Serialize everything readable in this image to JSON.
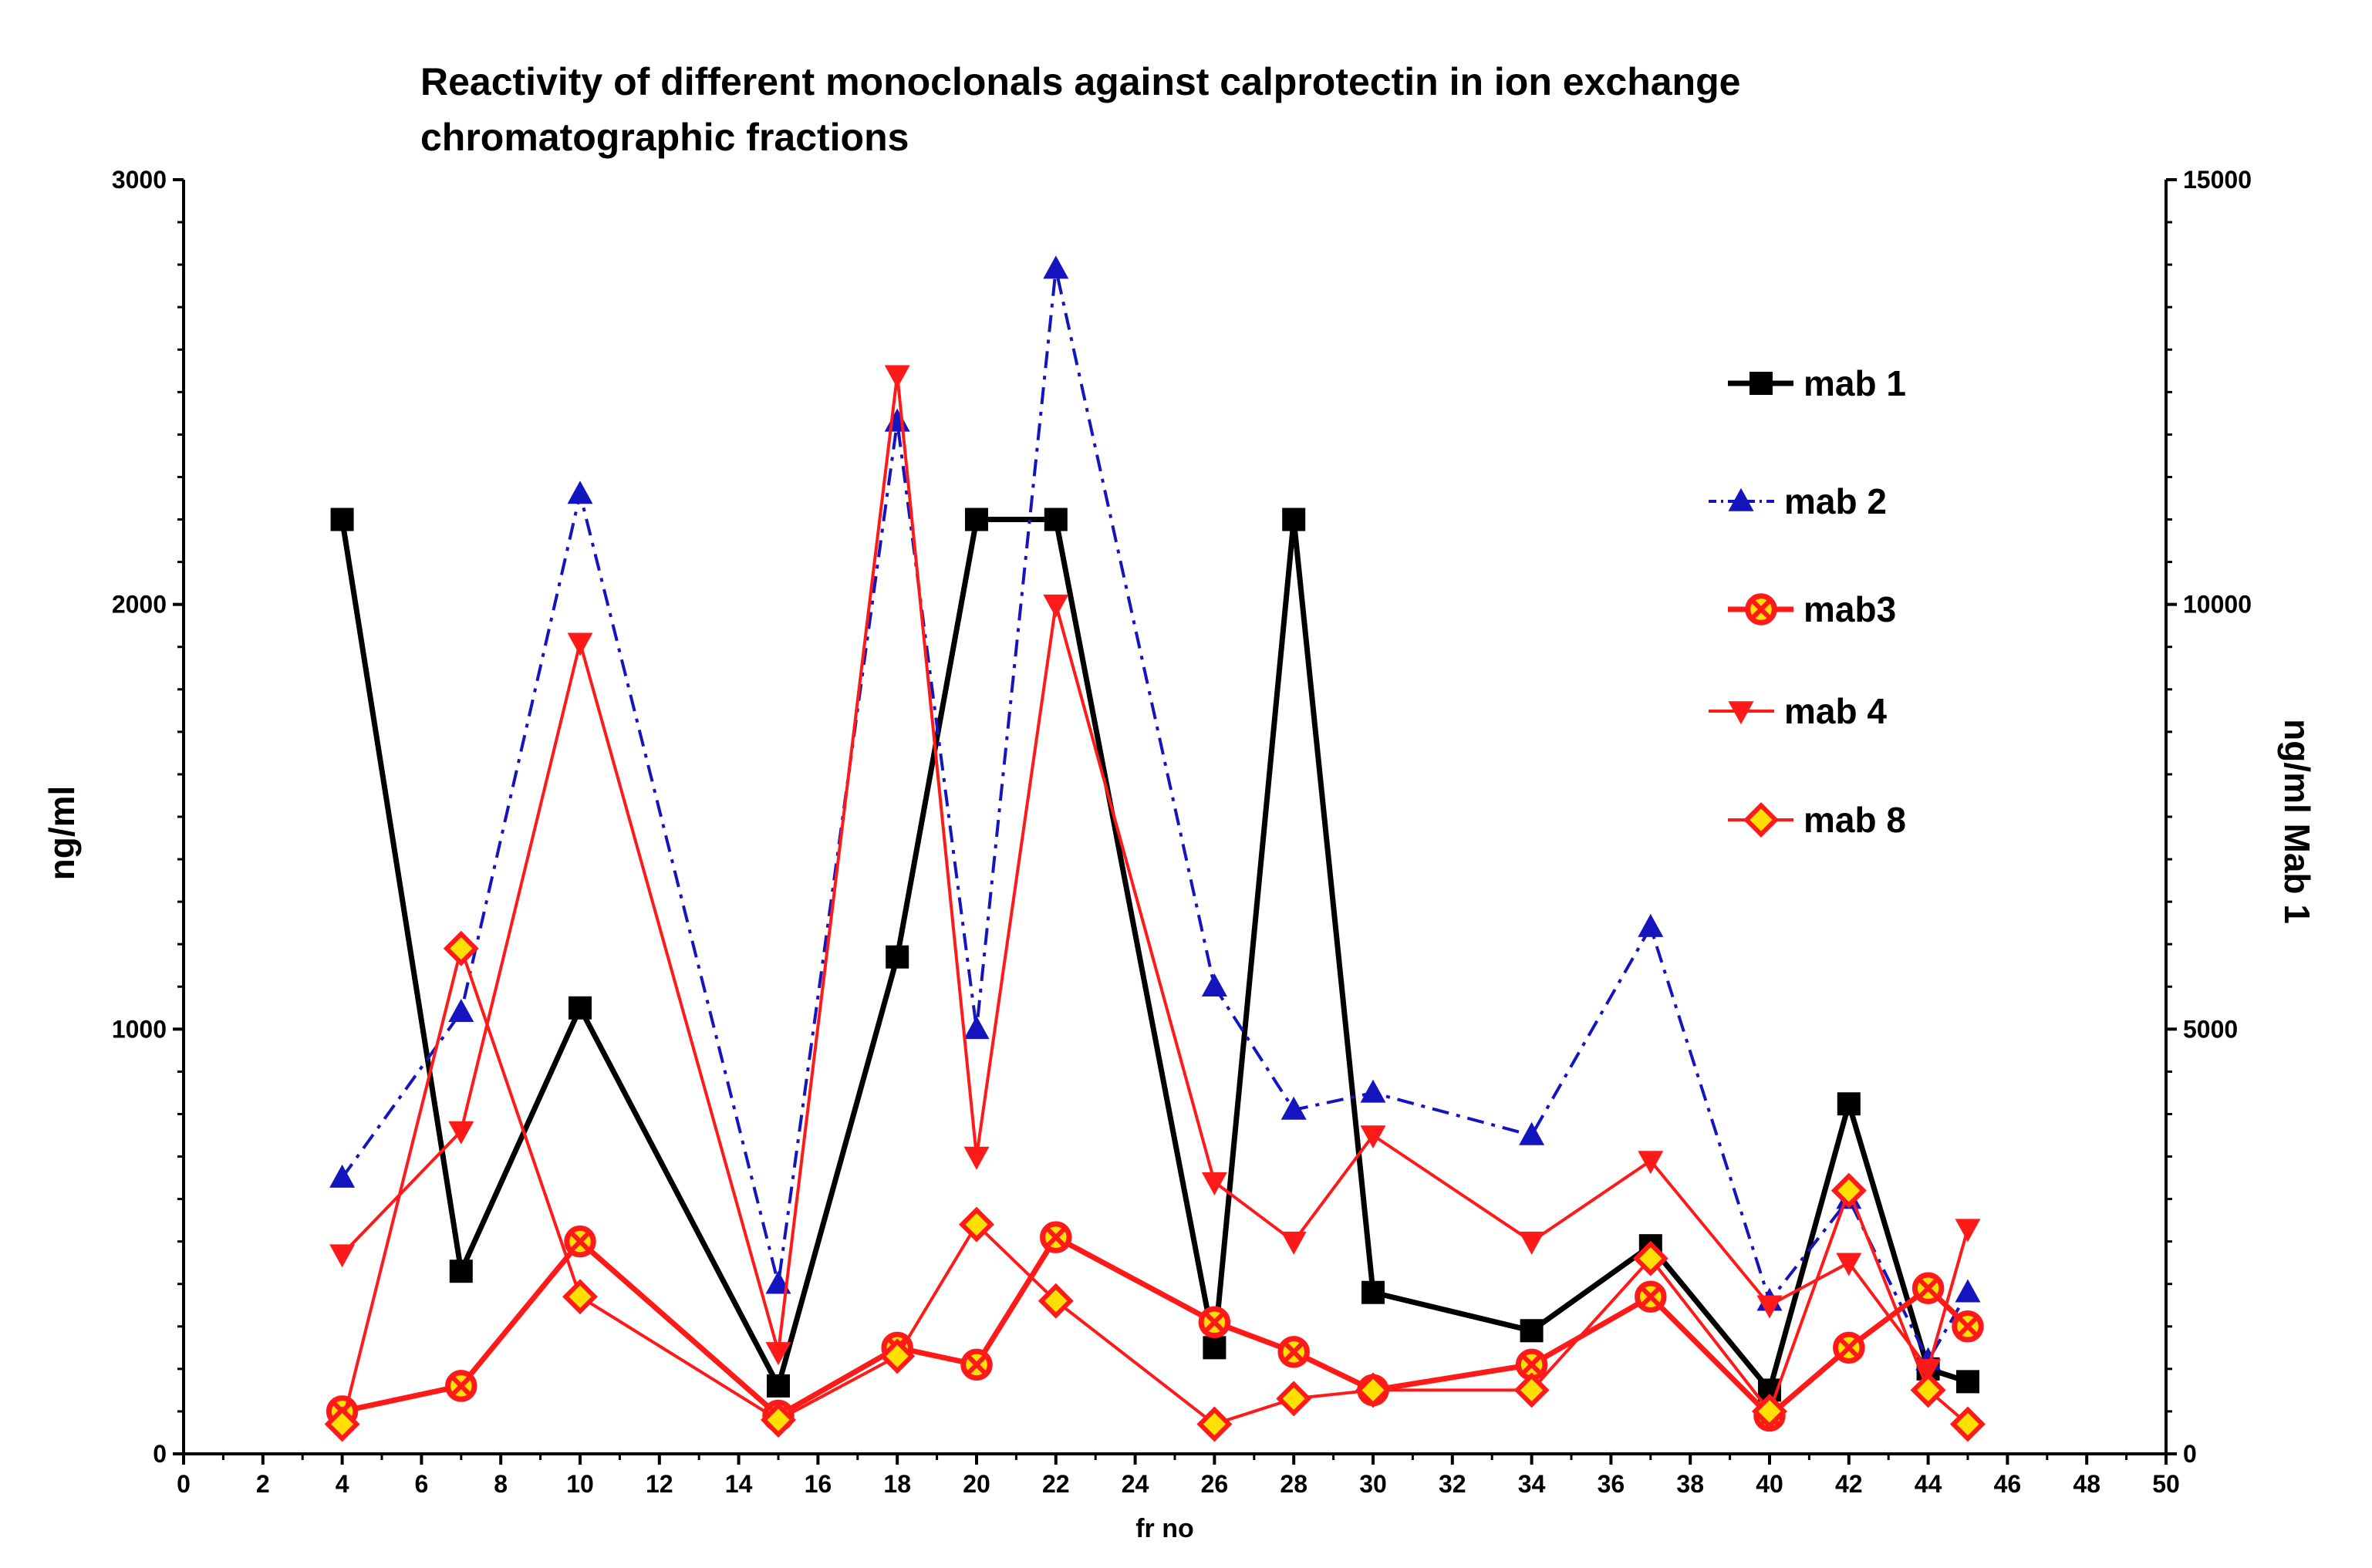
{
  "chart_data": {
    "type": "line",
    "title_lines": [
      "Reactivity of different monoclonals against calprotectin in ion exchange",
      "chromatographic fractions"
    ],
    "xlabel": "fr no",
    "ylabel": "ng/ml",
    "y2label": "ng/ml  Mab 1",
    "xlim": [
      0,
      50
    ],
    "ylim": [
      0,
      3000
    ],
    "y2lim": [
      0,
      15000
    ],
    "x_ticks": [
      "0",
      "2",
      "4",
      "6",
      "8",
      "10",
      "12",
      "14",
      "16",
      "18",
      "20",
      "22",
      "24",
      "26",
      "28",
      "30",
      "32",
      "34",
      "36",
      "38",
      "40",
      "42",
      "44",
      "46",
      "48",
      "50"
    ],
    "y_ticks": [
      "0",
      "1000",
      "2000",
      "3000"
    ],
    "y2_ticks": [
      "0",
      "5000",
      "10000",
      "15000"
    ],
    "legend_position": "right",
    "series": [
      {
        "name": "mab 1",
        "axis": "right",
        "color": "#000000",
        "marker": "square",
        "line": "solid",
        "x": [
          4,
          7,
          10,
          15,
          18,
          20,
          22,
          26,
          28,
          30,
          34,
          37,
          40,
          42,
          44,
          45
        ],
        "values": [
          11000,
          2150,
          5250,
          800,
          5850,
          11000,
          11000,
          1250,
          11000,
          1900,
          1450,
          2450,
          750,
          4120,
          1000,
          850
        ]
      },
      {
        "name": "mab 2",
        "axis": "left",
        "color": "#1515c0",
        "marker": "triangle-up",
        "line": "dashdot",
        "x": [
          4,
          7,
          10,
          15,
          18,
          20,
          22,
          26,
          28,
          30,
          34,
          37,
          40,
          42,
          44,
          45
        ],
        "values": [
          650,
          1040,
          2260,
          400,
          2430,
          1000,
          2790,
          1100,
          810,
          850,
          750,
          1240,
          360,
          600,
          220,
          380
        ]
      },
      {
        "name": "mab3",
        "axis": "left",
        "color": "#ff1a1a",
        "fill": "#ffe000",
        "marker": "circle-x",
        "line": "solid",
        "x": [
          4,
          7,
          10,
          15,
          18,
          20,
          22,
          26,
          28,
          30,
          34,
          37,
          40,
          42,
          44,
          45
        ],
        "values": [
          100,
          160,
          500,
          90,
          250,
          210,
          510,
          310,
          240,
          150,
          210,
          370,
          90,
          250,
          390,
          300
        ]
      },
      {
        "name": "mab 4",
        "axis": "left",
        "color": "#ff1a1a",
        "marker": "triangle-down",
        "line": "solid",
        "x": [
          4,
          7,
          10,
          15,
          18,
          20,
          22,
          26,
          28,
          30,
          34,
          37,
          40,
          42,
          44,
          45
        ],
        "values": [
          470,
          760,
          1910,
          240,
          2540,
          700,
          2000,
          640,
          500,
          750,
          500,
          690,
          350,
          450,
          200,
          530
        ]
      },
      {
        "name": "mab 8",
        "axis": "left",
        "color": "#ff1a1a",
        "fill": "#ffe000",
        "marker": "diamond",
        "line": "solid",
        "x": [
          4,
          7,
          10,
          15,
          18,
          20,
          22,
          26,
          28,
          30,
          34,
          37,
          40,
          42,
          44,
          45
        ],
        "values": [
          70,
          1190,
          370,
          80,
          230,
          540,
          360,
          70,
          130,
          150,
          150,
          460,
          100,
          620,
          150,
          70
        ]
      }
    ]
  }
}
